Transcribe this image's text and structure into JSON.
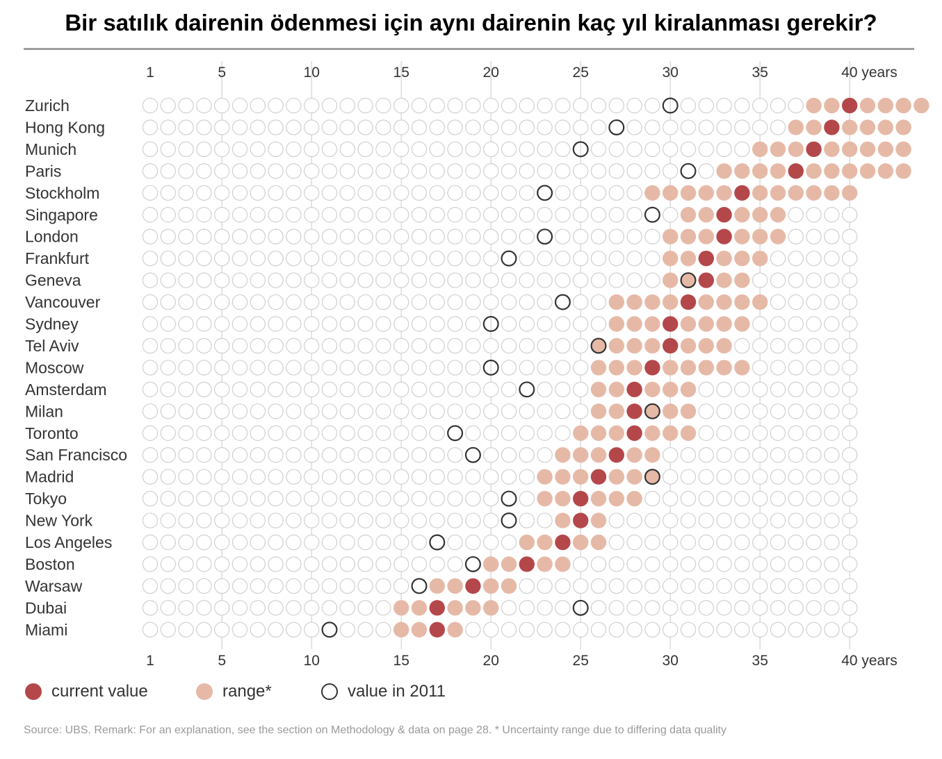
{
  "title": "Bir satılık dairenin ödenmesi için aynı dairenin kaç yıl kiralanması gerekir?",
  "source": "Source: UBS. Remark: For an explanation, see the section on Methodology & data on page 28.    * Uncertainty range due to differing data quality",
  "legend": {
    "current": "current value",
    "range": "range*",
    "y2011": "value in 2011"
  },
  "colors": {
    "current": "#b4474a",
    "range": "#e6b9a7",
    "empty_stroke": "#cfcfcf",
    "y2011_stroke": "#333333",
    "gridline": "#d6d6d6"
  },
  "chart_data": {
    "type": "scatter",
    "x_unit": "years",
    "xlim": [
      1,
      40
    ],
    "x_ticks": [
      1,
      5,
      10,
      15,
      20,
      25,
      30,
      35,
      40
    ],
    "x_tick_labels": [
      "1",
      "5",
      "10",
      "15",
      "20",
      "25",
      "30",
      "35",
      "40 years"
    ],
    "series": [
      {
        "name": "current value"
      },
      {
        "name": "range*"
      },
      {
        "name": "value in 2011"
      }
    ],
    "cities": [
      {
        "city": "Zurich",
        "current": 40,
        "range": [
          38,
          44
        ],
        "y2011": 30
      },
      {
        "city": "Hong Kong",
        "current": 39,
        "range": [
          37,
          43
        ],
        "y2011": 27
      },
      {
        "city": "Munich",
        "current": 38,
        "range": [
          35,
          43
        ],
        "y2011": 25
      },
      {
        "city": "Paris",
        "current": 37,
        "range": [
          33,
          43
        ],
        "y2011": 31
      },
      {
        "city": "Stockholm",
        "current": 34,
        "range": [
          29,
          40
        ],
        "y2011": 23
      },
      {
        "city": "Singapore",
        "current": 33,
        "range": [
          31,
          36
        ],
        "y2011": 29
      },
      {
        "city": "London",
        "current": 33,
        "range": [
          30,
          36
        ],
        "y2011": 23
      },
      {
        "city": "Frankfurt",
        "current": 32,
        "range": [
          30,
          35
        ],
        "y2011": 21
      },
      {
        "city": "Geneva",
        "current": 32,
        "range": [
          30,
          34
        ],
        "y2011": 31
      },
      {
        "city": "Vancouver",
        "current": 31,
        "range": [
          27,
          35
        ],
        "y2011": 24
      },
      {
        "city": "Sydney",
        "current": 30,
        "range": [
          27,
          34
        ],
        "y2011": 20
      },
      {
        "city": "Tel Aviv",
        "current": 30,
        "range": [
          26,
          33
        ],
        "y2011": 26
      },
      {
        "city": "Moscow",
        "current": 29,
        "range": [
          26,
          34
        ],
        "y2011": 20
      },
      {
        "city": "Amsterdam",
        "current": 28,
        "range": [
          26,
          31
        ],
        "y2011": 22
      },
      {
        "city": "Milan",
        "current": 28,
        "range": [
          26,
          31
        ],
        "y2011": 29
      },
      {
        "city": "Toronto",
        "current": 28,
        "range": [
          25,
          31
        ],
        "y2011": 18
      },
      {
        "city": "San Francisco",
        "current": 27,
        "range": [
          24,
          29
        ],
        "y2011": 19
      },
      {
        "city": "Madrid",
        "current": 26,
        "range": [
          23,
          29
        ],
        "y2011": 29
      },
      {
        "city": "Tokyo",
        "current": 25,
        "range": [
          23,
          28
        ],
        "y2011": 21
      },
      {
        "city": "New York",
        "current": 25,
        "range": [
          24,
          26
        ],
        "y2011": 21
      },
      {
        "city": "Los Angeles",
        "current": 24,
        "range": [
          22,
          26
        ],
        "y2011": 17
      },
      {
        "city": "Boston",
        "current": 22,
        "range": [
          20,
          24
        ],
        "y2011": 19
      },
      {
        "city": "Warsaw",
        "current": 19,
        "range": [
          17,
          21
        ],
        "y2011": 16
      },
      {
        "city": "Dubai",
        "current": 17,
        "range": [
          15,
          20
        ],
        "y2011": 25
      },
      {
        "city": "Miami",
        "current": 17,
        "range": [
          15,
          18
        ],
        "y2011": 11
      }
    ]
  }
}
